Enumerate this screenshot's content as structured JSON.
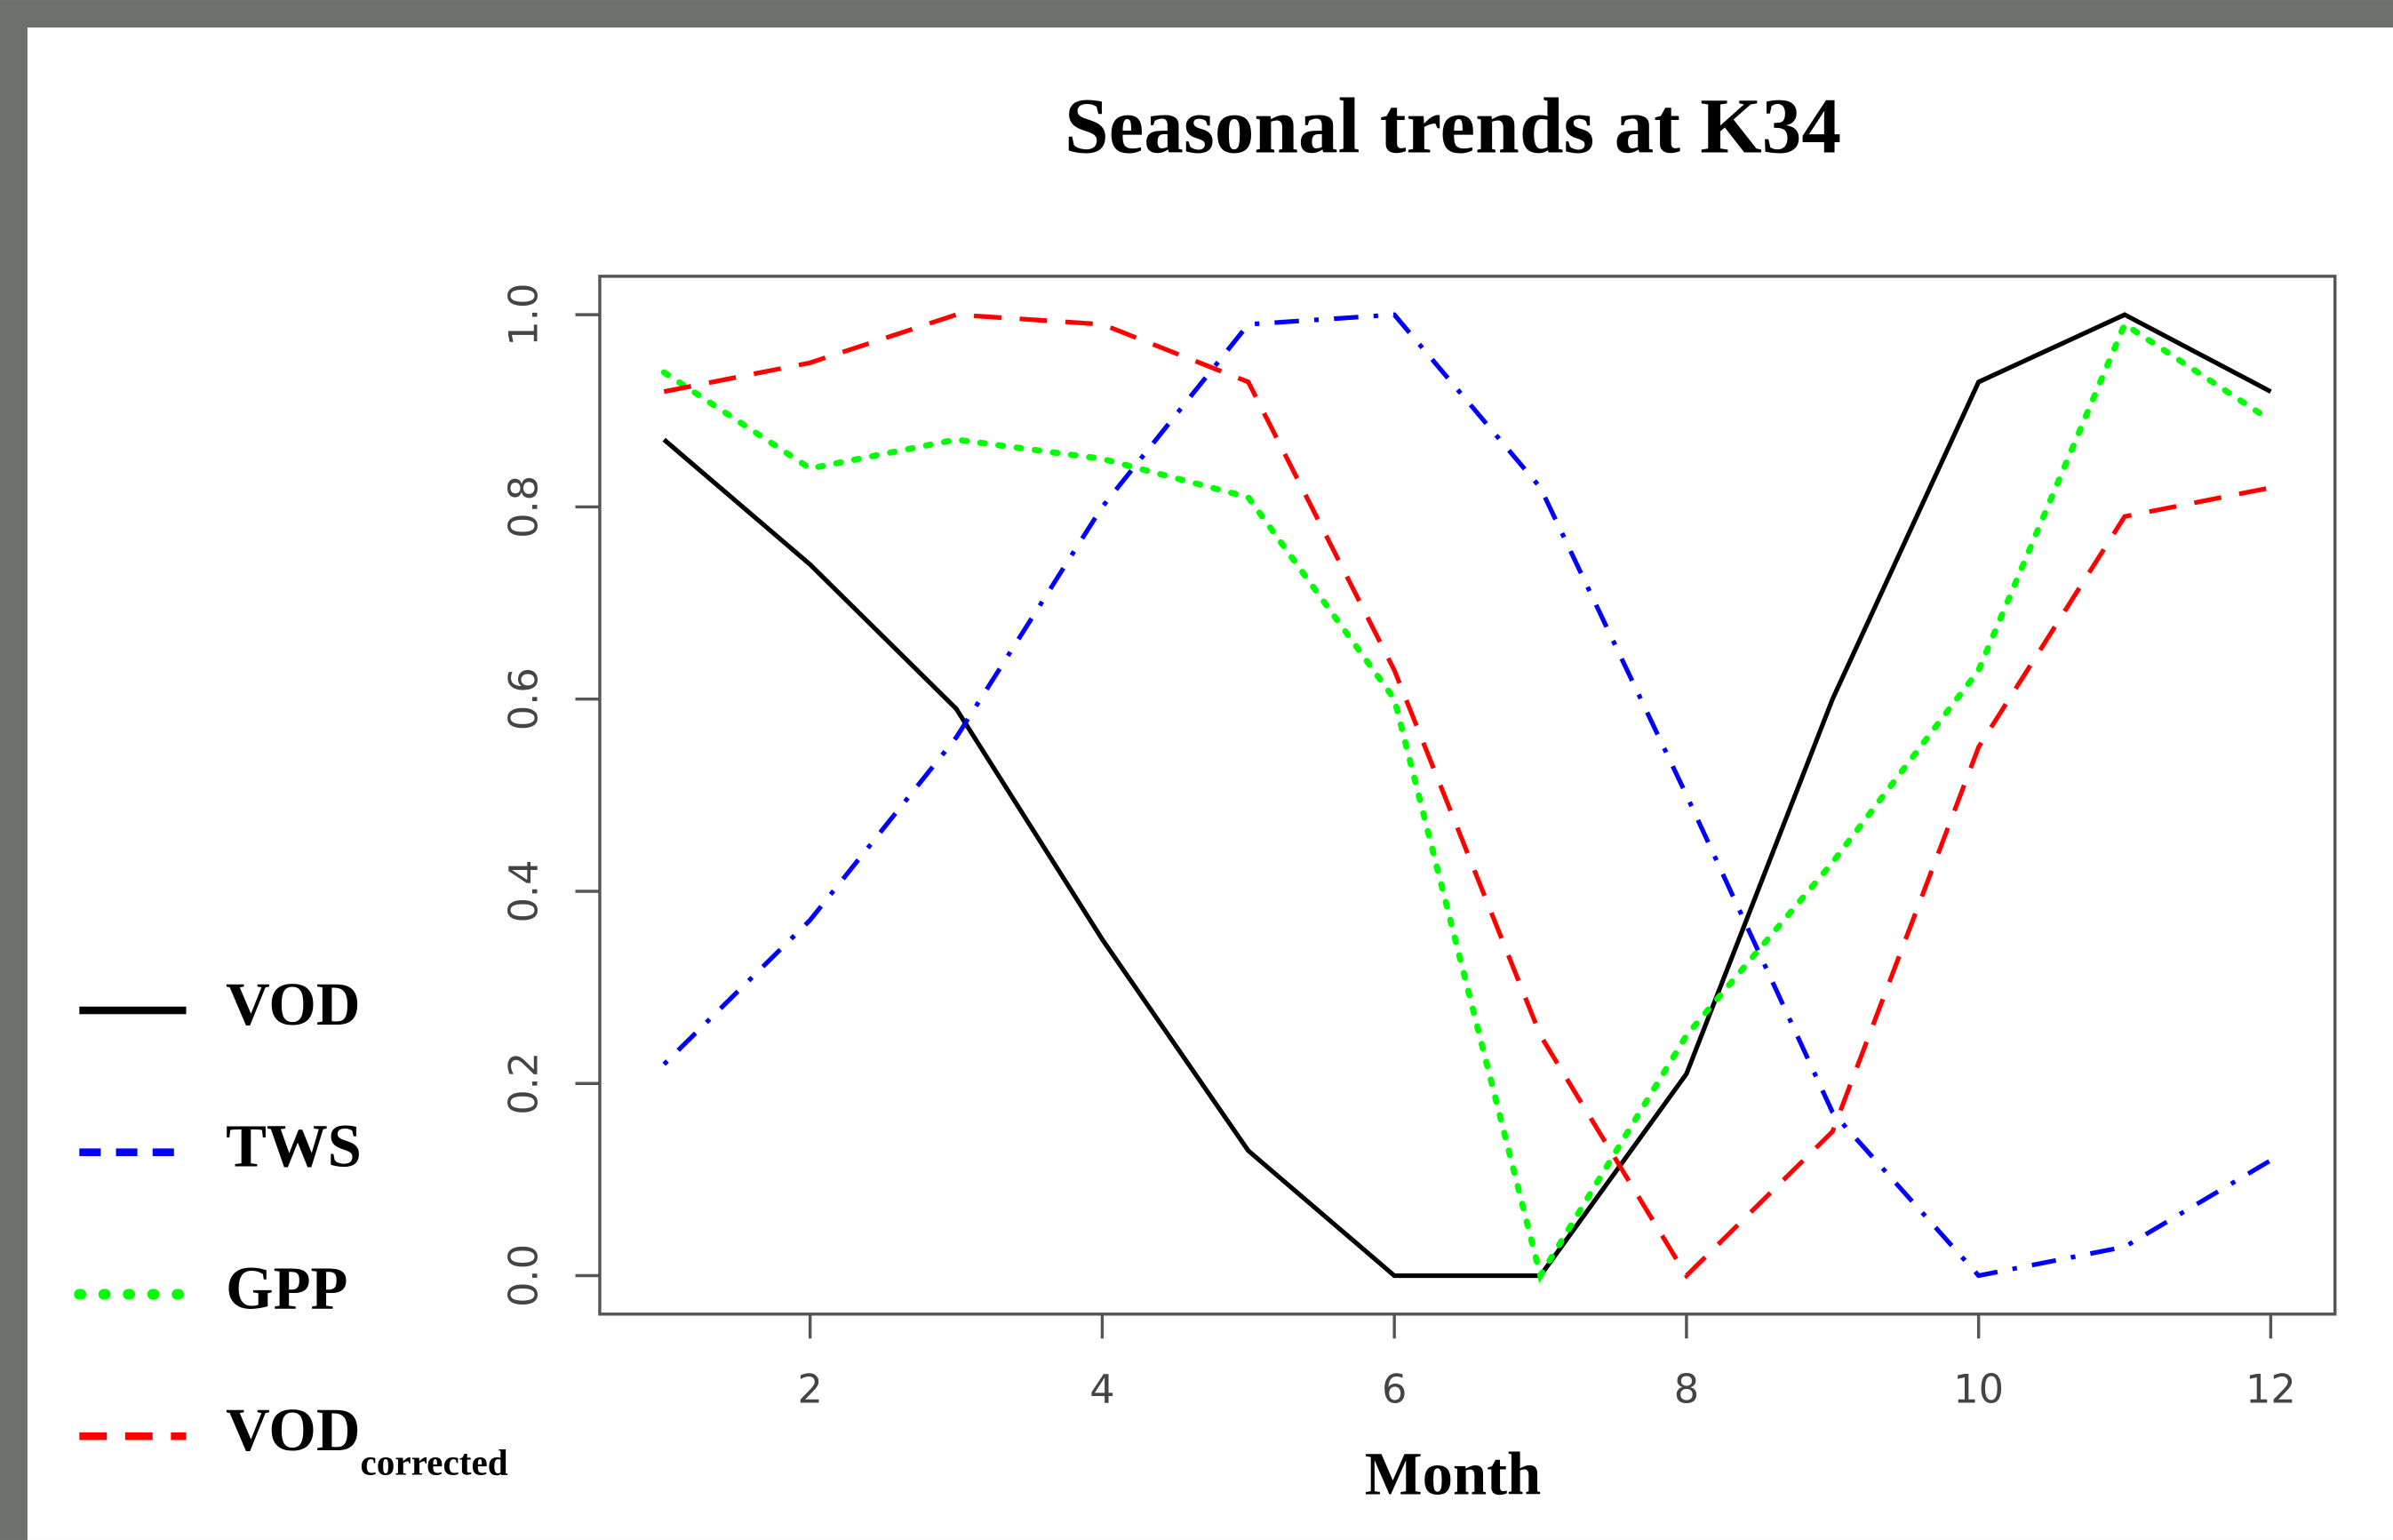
{
  "chart_data": {
    "type": "line",
    "title": "Seasonal trends at K34",
    "x_label": "Month",
    "x": [
      1,
      2,
      3,
      4,
      5,
      6,
      7,
      8,
      9,
      10,
      11,
      12
    ],
    "xlim": [
      0.56,
      12.44
    ],
    "xticks": [
      2,
      4,
      6,
      8,
      10,
      12
    ],
    "ylim": [
      -0.04,
      1.04
    ],
    "yticks": [
      {
        "value": 0,
        "label": "0.0"
      },
      0.2,
      0.4,
      0.6,
      0.8,
      {
        "value": 1,
        "label": "1.0"
      }
    ],
    "grid": false,
    "legend": "left",
    "series": [
      {
        "name": "VOD",
        "color": "#000000",
        "linestyle": "solid",
        "values": [
          0.87,
          0.74,
          0.59,
          0.35,
          0.13,
          0.0,
          0.0,
          0.21,
          0.6,
          0.93,
          1.0,
          0.92
        ]
      },
      {
        "name": "TWS",
        "color": "#0000ff",
        "linestyle": "dashdot",
        "values": [
          0.22,
          0.37,
          0.56,
          0.8,
          0.99,
          1.0,
          0.82,
          0.5,
          0.17,
          0.0,
          0.03,
          0.12
        ]
      },
      {
        "name": "GPP",
        "color": "#00ff00",
        "linestyle": "dotted",
        "values": [
          0.94,
          0.84,
          0.87,
          0.85,
          0.81,
          0.6,
          0.0,
          0.25,
          0.43,
          0.63,
          0.99,
          0.89
        ]
      },
      {
        "name": "VOD",
        "subscript": "corrected",
        "color": "#ff0000",
        "linestyle": "dashed",
        "values": [
          0.92,
          0.95,
          1.0,
          0.99,
          0.93,
          0.63,
          0.25,
          0.0,
          0.15,
          0.55,
          0.79,
          0.82
        ]
      }
    ]
  }
}
